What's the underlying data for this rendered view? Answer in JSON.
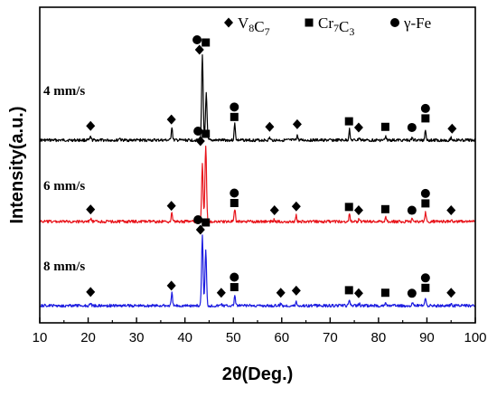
{
  "chart_data": {
    "type": "line",
    "xlabel": "2θ(Deg.)",
    "ylabel": "Intensity(a.u.)",
    "xlim": [
      10,
      100
    ],
    "xticks": [
      "10",
      "20",
      "30",
      "40",
      "50",
      "60",
      "70",
      "80",
      "90",
      "100"
    ],
    "legend": {
      "placement": "top",
      "entries": [
        {
          "marker": "diamond",
          "label": "V8C7",
          "base": "V",
          "sub1": "8",
          "mid": "C",
          "sub2": "7"
        },
        {
          "marker": "square",
          "label": "Cr7C3",
          "base": "Cr",
          "sub1": "7",
          "mid": "C",
          "sub2": "3"
        },
        {
          "marker": "circle",
          "label": "γ-Fe",
          "base": "γ-Fe",
          "sub1": "",
          "mid": "",
          "sub2": ""
        }
      ]
    },
    "series": [
      {
        "name": "4 mm/s",
        "color": "#000000",
        "peaks": [
          {
            "x": 20.5,
            "h": 0.04
          },
          {
            "x": 26.5,
            "h": 0.03
          },
          {
            "x": 37.3,
            "h": 0.16
          },
          {
            "x": 43.6,
            "h": 1.0
          },
          {
            "x": 44.4,
            "h": 0.55
          },
          {
            "x": 50.3,
            "h": 0.2
          },
          {
            "x": 57.5,
            "h": 0.03
          },
          {
            "x": 63.2,
            "h": 0.06
          },
          {
            "x": 74.0,
            "h": 0.13
          },
          {
            "x": 76.0,
            "h": 0.03
          },
          {
            "x": 81.5,
            "h": 0.04
          },
          {
            "x": 87.0,
            "h": 0.03
          },
          {
            "x": 89.7,
            "h": 0.13
          },
          {
            "x": 95.0,
            "h": 0.03
          }
        ],
        "markers": [
          {
            "x": 20.5,
            "m": "diamond"
          },
          {
            "x": 37.2,
            "m": "diamond"
          },
          {
            "x": 42.5,
            "m": "circle"
          },
          {
            "x": 43.0,
            "m": "diamond"
          },
          {
            "x": 44.3,
            "m": "square"
          },
          {
            "x": 50.2,
            "m": "circle"
          },
          {
            "x": 50.2,
            "m": "square"
          },
          {
            "x": 57.5,
            "m": "diamond"
          },
          {
            "x": 63.2,
            "m": "diamond"
          },
          {
            "x": 73.9,
            "m": "square"
          },
          {
            "x": 75.9,
            "m": "diamond"
          },
          {
            "x": 81.4,
            "m": "square"
          },
          {
            "x": 86.9,
            "m": "circle"
          },
          {
            "x": 89.7,
            "m": "circle"
          },
          {
            "x": 89.7,
            "m": "square"
          },
          {
            "x": 95.2,
            "m": "diamond"
          }
        ]
      },
      {
        "name": "6 mm/s",
        "color": "#e8141b",
        "peaks": [
          {
            "x": 20.5,
            "h": 0.04
          },
          {
            "x": 37.3,
            "h": 0.12
          },
          {
            "x": 43.6,
            "h": 0.75
          },
          {
            "x": 44.3,
            "h": 1.0
          },
          {
            "x": 50.3,
            "h": 0.17
          },
          {
            "x": 58.5,
            "h": 0.03
          },
          {
            "x": 63.0,
            "h": 0.08
          },
          {
            "x": 74.0,
            "h": 0.1
          },
          {
            "x": 76.0,
            "h": 0.04
          },
          {
            "x": 81.5,
            "h": 0.06
          },
          {
            "x": 87.0,
            "h": 0.04
          },
          {
            "x": 89.7,
            "h": 0.12
          },
          {
            "x": 95.0,
            "h": 0.03
          }
        ],
        "markers": [
          {
            "x": 20.5,
            "m": "diamond"
          },
          {
            "x": 37.2,
            "m": "diamond"
          },
          {
            "x": 42.7,
            "m": "circle"
          },
          {
            "x": 43.2,
            "m": "diamond"
          },
          {
            "x": 44.3,
            "m": "square"
          },
          {
            "x": 50.2,
            "m": "circle"
          },
          {
            "x": 50.2,
            "m": "square"
          },
          {
            "x": 58.5,
            "m": "diamond"
          },
          {
            "x": 63.0,
            "m": "diamond"
          },
          {
            "x": 73.9,
            "m": "square"
          },
          {
            "x": 75.9,
            "m": "diamond"
          },
          {
            "x": 81.4,
            "m": "square"
          },
          {
            "x": 86.9,
            "m": "circle"
          },
          {
            "x": 89.7,
            "m": "circle"
          },
          {
            "x": 89.7,
            "m": "square"
          },
          {
            "x": 95.0,
            "m": "diamond"
          }
        ]
      },
      {
        "name": "8 mm/s",
        "color": "#1b1be0",
        "peaks": [
          {
            "x": 20.5,
            "h": 0.04
          },
          {
            "x": 37.3,
            "h": 0.18
          },
          {
            "x": 43.6,
            "h": 1.0
          },
          {
            "x": 44.3,
            "h": 0.8
          },
          {
            "x": 47.5,
            "h": 0.03
          },
          {
            "x": 50.3,
            "h": 0.15
          },
          {
            "x": 59.8,
            "h": 0.03
          },
          {
            "x": 63.0,
            "h": 0.06
          },
          {
            "x": 74.0,
            "h": 0.09
          },
          {
            "x": 76.0,
            "h": 0.03
          },
          {
            "x": 81.5,
            "h": 0.04
          },
          {
            "x": 87.0,
            "h": 0.03
          },
          {
            "x": 89.7,
            "h": 0.1
          },
          {
            "x": 95.0,
            "h": 0.03
          }
        ],
        "markers": [
          {
            "x": 20.5,
            "m": "diamond"
          },
          {
            "x": 37.2,
            "m": "diamond"
          },
          {
            "x": 42.7,
            "m": "circle"
          },
          {
            "x": 43.2,
            "m": "diamond"
          },
          {
            "x": 44.3,
            "m": "square"
          },
          {
            "x": 47.5,
            "m": "diamond"
          },
          {
            "x": 50.2,
            "m": "circle"
          },
          {
            "x": 50.2,
            "m": "square"
          },
          {
            "x": 59.8,
            "m": "diamond"
          },
          {
            "x": 63.0,
            "m": "diamond"
          },
          {
            "x": 73.9,
            "m": "square"
          },
          {
            "x": 75.9,
            "m": "diamond"
          },
          {
            "x": 81.4,
            "m": "square"
          },
          {
            "x": 86.9,
            "m": "circle"
          },
          {
            "x": 89.7,
            "m": "circle"
          },
          {
            "x": 89.7,
            "m": "square"
          },
          {
            "x": 95.0,
            "m": "diamond"
          }
        ]
      }
    ]
  }
}
